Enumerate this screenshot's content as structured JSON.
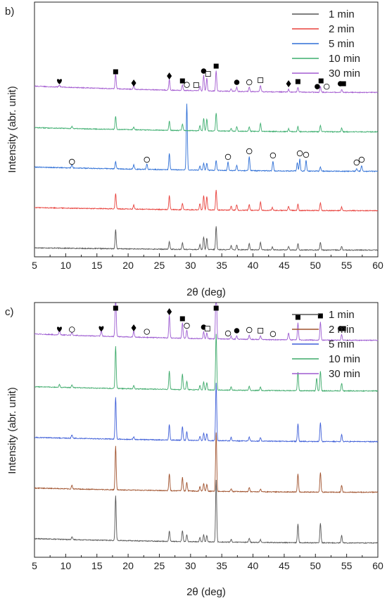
{
  "chart_data": [
    {
      "type": "line",
      "panel_label": "b)",
      "xlabel": "2θ (deg)",
      "ylabel": "Intensity (abr. unit)",
      "xlim": [
        5,
        60
      ],
      "x_ticks": [
        "5",
        "10",
        "15",
        "20",
        "25",
        "30",
        "35",
        "40",
        "45",
        "50",
        "55",
        "60"
      ],
      "stacked_offset": true,
      "legend_position": "top-right",
      "series": [
        {
          "name": "1 min",
          "color": "#555555",
          "offset": 0,
          "baseline_start": 0.16,
          "baseline_end": 0.03,
          "peaks": [
            [
              18.0,
              1.35
            ],
            [
              26.6,
              0.55
            ],
            [
              28.7,
              0.45
            ],
            [
              31.5,
              0.35
            ],
            [
              32.1,
              0.9
            ],
            [
              32.6,
              0.8
            ],
            [
              34.1,
              1.65
            ],
            [
              36.5,
              0.3
            ],
            [
              37.4,
              0.35
            ],
            [
              39.4,
              0.45
            ],
            [
              41.2,
              0.55
            ],
            [
              43.1,
              0.2
            ],
            [
              45.7,
              0.25
            ],
            [
              47.2,
              0.45
            ],
            [
              50.8,
              0.55
            ],
            [
              54.2,
              0.25
            ]
          ]
        },
        {
          "name": "2 min",
          "color": "#e8413c",
          "offset": 1,
          "baseline_start": 0.22,
          "baseline_end": 0.03,
          "peaks": [
            [
              18.0,
              1.1
            ],
            [
              20.9,
              0.3
            ],
            [
              26.6,
              1.0
            ],
            [
              28.7,
              0.45
            ],
            [
              31.5,
              0.45
            ],
            [
              32.1,
              1.0
            ],
            [
              32.6,
              0.95
            ],
            [
              34.1,
              1.45
            ],
            [
              36.5,
              0.3
            ],
            [
              37.4,
              0.4
            ],
            [
              39.4,
              0.4
            ],
            [
              41.2,
              0.6
            ],
            [
              43.1,
              0.2
            ],
            [
              45.7,
              0.3
            ],
            [
              47.2,
              0.45
            ],
            [
              50.8,
              0.55
            ],
            [
              54.2,
              0.25
            ]
          ]
        },
        {
          "name": "5 min",
          "color": "#2e6fd6",
          "offset": 2,
          "baseline_start": 0.3,
          "baseline_end": 0.03,
          "peaks": [
            [
              11.0,
              0.25
            ],
            [
              18.0,
              0.5
            ],
            [
              20.9,
              0.3
            ],
            [
              23.0,
              0.4
            ],
            [
              26.6,
              1.15
            ],
            [
              29.4,
              4.7
            ],
            [
              31.5,
              0.3
            ],
            [
              32.1,
              0.5
            ],
            [
              32.6,
              0.5
            ],
            [
              34.1,
              0.7
            ],
            [
              36.0,
              0.6
            ],
            [
              37.4,
              0.35
            ],
            [
              39.4,
              1.0
            ],
            [
              43.2,
              0.7
            ],
            [
              47.1,
              0.6
            ],
            [
              47.5,
              0.85
            ],
            [
              48.5,
              0.75
            ],
            [
              50.8,
              0.3
            ],
            [
              56.6,
              0.2
            ],
            [
              57.4,
              0.4
            ]
          ]
        },
        {
          "name": "10 min",
          "color": "#3dae6f",
          "offset": 3,
          "baseline_start": 0.3,
          "baseline_end": 0.03,
          "peaks": [
            [
              11.0,
              0.15
            ],
            [
              18.0,
              0.95
            ],
            [
              20.9,
              0.2
            ],
            [
              26.6,
              0.65
            ],
            [
              28.7,
              0.45
            ],
            [
              31.5,
              0.35
            ],
            [
              32.1,
              0.9
            ],
            [
              32.6,
              0.85
            ],
            [
              34.1,
              1.3
            ],
            [
              36.5,
              0.2
            ],
            [
              37.4,
              0.3
            ],
            [
              39.4,
              0.3
            ],
            [
              41.2,
              0.55
            ],
            [
              45.7,
              0.2
            ],
            [
              47.2,
              0.35
            ],
            [
              50.8,
              0.45
            ],
            [
              54.2,
              0.25
            ]
          ]
        },
        {
          "name": "30 min",
          "color": "#a35bd0",
          "offset": 4,
          "baseline_start": 0.45,
          "baseline_end": 0.03,
          "peaks": [
            [
              9.0,
              0.15
            ],
            [
              18.0,
              1.05
            ],
            [
              20.9,
              0.25
            ],
            [
              26.6,
              0.75
            ],
            [
              28.7,
              0.4
            ],
            [
              31.5,
              0.35
            ],
            [
              32.1,
              1.1
            ],
            [
              32.6,
              0.9
            ],
            [
              34.1,
              1.45
            ],
            [
              36.5,
              0.2
            ],
            [
              37.4,
              0.3
            ],
            [
              39.4,
              0.3
            ],
            [
              41.2,
              0.45
            ],
            [
              45.7,
              0.2
            ],
            [
              47.2,
              0.35
            ],
            [
              50.8,
              0.4
            ],
            [
              54.2,
              0.2
            ]
          ]
        }
      ],
      "markers": [
        {
          "x": 9.0,
          "series": 4,
          "symbol": "heart"
        },
        {
          "x": 18.0,
          "series": 4,
          "symbol": "square-filled"
        },
        {
          "x": 20.9,
          "series": 4,
          "symbol": "diamond"
        },
        {
          "x": 26.6,
          "series": 4,
          "symbol": "diamond"
        },
        {
          "x": 28.7,
          "series": 4,
          "symbol": "square-filled"
        },
        {
          "x": 29.4,
          "series": 4,
          "symbol": "circle-open"
        },
        {
          "x": 30.9,
          "series": 4,
          "symbol": "square-open"
        },
        {
          "x": 32.1,
          "series": 4,
          "symbol": "circle-filled"
        },
        {
          "x": 32.8,
          "series": 4,
          "symbol": "square-open"
        },
        {
          "x": 34.1,
          "series": 4,
          "symbol": "square-filled"
        },
        {
          "x": 37.4,
          "series": 4,
          "symbol": "circle-filled"
        },
        {
          "x": 39.4,
          "series": 4,
          "symbol": "circle-open"
        },
        {
          "x": 41.2,
          "series": 4,
          "symbol": "square-open"
        },
        {
          "x": 45.7,
          "series": 4,
          "symbol": "diamond"
        },
        {
          "x": 47.2,
          "series": 4,
          "symbol": "square-filled"
        },
        {
          "x": 50.3,
          "series": 4,
          "symbol": "circle-filled"
        },
        {
          "x": 50.9,
          "series": 4,
          "symbol": "square-filled"
        },
        {
          "x": 51.8,
          "series": 4,
          "symbol": "circle-open"
        },
        {
          "x": 54.0,
          "series": 4,
          "symbol": "circle-filled"
        },
        {
          "x": 54.5,
          "series": 4,
          "symbol": "square-filled"
        },
        {
          "x": 11.0,
          "series": 2,
          "symbol": "circle-open"
        },
        {
          "x": 23.0,
          "series": 2,
          "symbol": "circle-open"
        },
        {
          "x": 36.0,
          "series": 2,
          "symbol": "circle-open"
        },
        {
          "x": 39.4,
          "series": 2,
          "symbol": "circle-open"
        },
        {
          "x": 43.2,
          "series": 2,
          "symbol": "circle-open"
        },
        {
          "x": 47.5,
          "series": 2,
          "symbol": "circle-open"
        },
        {
          "x": 48.5,
          "series": 2,
          "symbol": "circle-open"
        },
        {
          "x": 56.6,
          "series": 2,
          "symbol": "circle-open"
        },
        {
          "x": 57.4,
          "series": 2,
          "symbol": "circle-open"
        }
      ]
    },
    {
      "type": "line",
      "panel_label": "c)",
      "xlabel": "2θ (deg)",
      "ylabel": "Intensity (abr. unit)",
      "xlim": [
        5,
        60
      ],
      "x_ticks": [
        "5",
        "10",
        "15",
        "20",
        "25",
        "30",
        "35",
        "40",
        "45",
        "50",
        "55",
        "60"
      ],
      "stacked_offset": true,
      "legend_position": "top-right",
      "series": [
        {
          "name": "1 min",
          "color": "#555555",
          "offset": 0,
          "baseline_start": 0.3,
          "baseline_end": 0.02,
          "peaks": [
            [
              11.0,
              0.2
            ],
            [
              18.0,
              3.2
            ],
            [
              26.6,
              0.75
            ],
            [
              28.7,
              0.8
            ],
            [
              29.4,
              0.5
            ],
            [
              31.5,
              0.3
            ],
            [
              32.1,
              0.5
            ],
            [
              32.6,
              0.45
            ],
            [
              34.1,
              4.4
            ],
            [
              36.5,
              0.2
            ],
            [
              39.4,
              0.3
            ],
            [
              41.2,
              0.2
            ],
            [
              47.2,
              1.35
            ],
            [
              50.8,
              1.4
            ],
            [
              54.2,
              0.55
            ]
          ]
        },
        {
          "name": "2 min",
          "color": "#a0522d",
          "offset": 1,
          "baseline_start": 0.3,
          "baseline_end": 0.02,
          "peaks": [
            [
              11.0,
              0.25
            ],
            [
              18.0,
              3.1
            ],
            [
              26.6,
              1.2
            ],
            [
              28.7,
              0.95
            ],
            [
              29.4,
              0.6
            ],
            [
              31.5,
              0.3
            ],
            [
              32.1,
              0.55
            ],
            [
              32.6,
              0.5
            ],
            [
              34.1,
              4.2
            ],
            [
              36.5,
              0.2
            ],
            [
              39.4,
              0.3
            ],
            [
              41.2,
              0.2
            ],
            [
              47.2,
              1.3
            ],
            [
              50.8,
              1.4
            ],
            [
              54.2,
              0.5
            ]
          ]
        },
        {
          "name": "5 min",
          "color": "#3f5fd8",
          "offset": 2,
          "baseline_start": 0.3,
          "baseline_end": 0.02,
          "peaks": [
            [
              11.0,
              0.25
            ],
            [
              18.0,
              3.0
            ],
            [
              20.9,
              0.2
            ],
            [
              26.6,
              1.1
            ],
            [
              28.7,
              0.95
            ],
            [
              29.4,
              0.6
            ],
            [
              31.5,
              0.3
            ],
            [
              32.1,
              0.55
            ],
            [
              32.6,
              0.5
            ],
            [
              34.1,
              4.1
            ],
            [
              36.5,
              0.25
            ],
            [
              39.4,
              0.3
            ],
            [
              41.2,
              0.25
            ],
            [
              47.2,
              1.25
            ],
            [
              50.8,
              1.35
            ],
            [
              54.2,
              0.5
            ]
          ]
        },
        {
          "name": "10 min",
          "color": "#3daa6a",
          "offset": 3,
          "baseline_start": 0.3,
          "baseline_end": 0.02,
          "peaks": [
            [
              9.0,
              0.2
            ],
            [
              11.0,
              0.2
            ],
            [
              18.0,
              3.0
            ],
            [
              20.9,
              0.25
            ],
            [
              26.6,
              1.3
            ],
            [
              28.7,
              1.1
            ],
            [
              29.4,
              0.6
            ],
            [
              31.5,
              0.3
            ],
            [
              32.1,
              0.55
            ],
            [
              32.6,
              0.5
            ],
            [
              34.1,
              4.0
            ],
            [
              36.5,
              0.25
            ],
            [
              39.4,
              0.3
            ],
            [
              41.2,
              0.25
            ],
            [
              47.2,
              1.3
            ],
            [
              50.2,
              0.9
            ],
            [
              50.8,
              1.4
            ],
            [
              54.2,
              0.55
            ]
          ]
        },
        {
          "name": "30 min",
          "color": "#9d5cd1",
          "offset": 4,
          "baseline_start": 0.45,
          "baseline_end": 0.02,
          "peaks": [
            [
              9.0,
              0.35
            ],
            [
              11.0,
              0.2
            ],
            [
              15.7,
              0.4
            ],
            [
              18.0,
              3.3
            ],
            [
              20.9,
              0.45
            ],
            [
              26.6,
              1.6
            ],
            [
              28.7,
              1.1
            ],
            [
              29.4,
              0.6
            ],
            [
              32.1,
              0.5
            ],
            [
              32.6,
              0.4
            ],
            [
              34.1,
              4.5
            ],
            [
              36.5,
              0.2
            ],
            [
              37.4,
              0.25
            ],
            [
              39.4,
              0.3
            ],
            [
              41.2,
              0.25
            ],
            [
              45.7,
              0.5
            ],
            [
              47.2,
              1.2
            ],
            [
              50.8,
              1.3
            ],
            [
              54.2,
              0.4
            ]
          ]
        }
      ],
      "markers": [
        {
          "x": 9.0,
          "series": 4,
          "symbol": "heart"
        },
        {
          "x": 11.0,
          "series": 4,
          "symbol": "circle-open"
        },
        {
          "x": 15.7,
          "series": 4,
          "symbol": "heart"
        },
        {
          "x": 18.0,
          "series": 4,
          "symbol": "square-filled"
        },
        {
          "x": 20.9,
          "series": 4,
          "symbol": "diamond"
        },
        {
          "x": 23.0,
          "series": 4,
          "symbol": "circle-open"
        },
        {
          "x": 26.6,
          "series": 4,
          "symbol": "diamond"
        },
        {
          "x": 28.7,
          "series": 4,
          "symbol": "square-filled"
        },
        {
          "x": 29.4,
          "series": 4,
          "symbol": "circle-open"
        },
        {
          "x": 32.1,
          "series": 4,
          "symbol": "circle-filled"
        },
        {
          "x": 32.7,
          "series": 4,
          "symbol": "square-open"
        },
        {
          "x": 34.1,
          "series": 4,
          "symbol": "square-filled"
        },
        {
          "x": 36.0,
          "series": 4,
          "symbol": "circle-open"
        },
        {
          "x": 37.4,
          "series": 4,
          "symbol": "circle-filled"
        },
        {
          "x": 39.4,
          "series": 4,
          "symbol": "circle-open"
        },
        {
          "x": 41.2,
          "series": 4,
          "symbol": "square-open"
        },
        {
          "x": 43.2,
          "series": 4,
          "symbol": "circle-open"
        },
        {
          "x": 47.2,
          "series": 4,
          "symbol": "square-filled"
        },
        {
          "x": 50.8,
          "series": 4,
          "symbol": "square-filled"
        },
        {
          "x": 54.0,
          "series": 4,
          "symbol": "circle-filled"
        },
        {
          "x": 54.5,
          "series": 4,
          "symbol": "square-filled"
        }
      ]
    }
  ]
}
